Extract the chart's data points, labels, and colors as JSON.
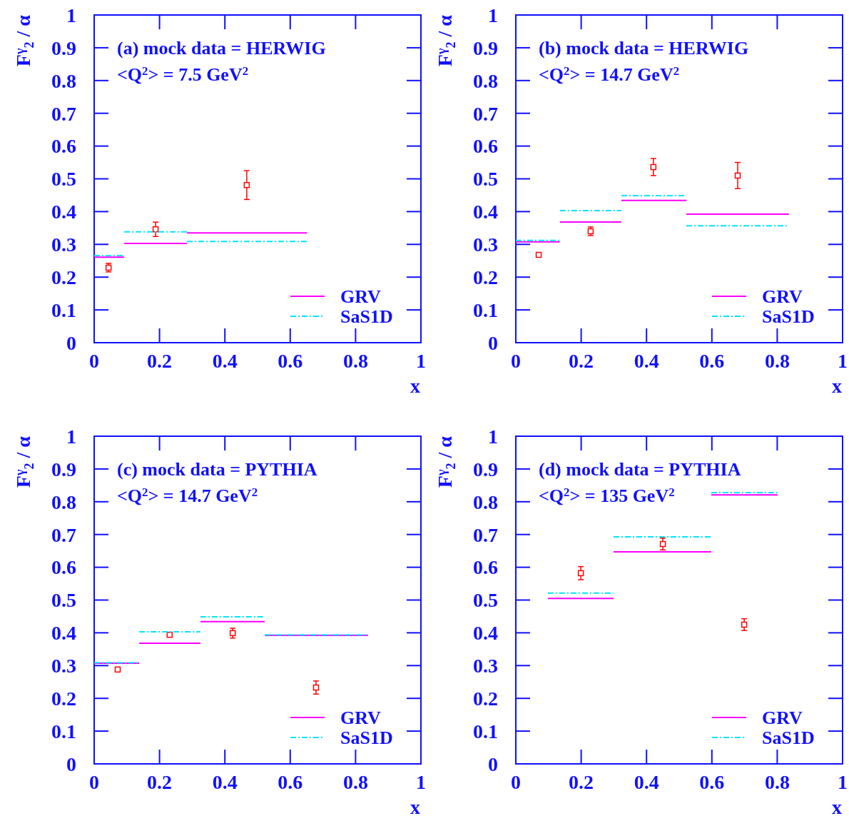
{
  "chart_data": [
    {
      "type": "scatter",
      "xlabel": "x",
      "ylabel": "F$^{γ}$$_{2}$ / α",
      "xlim": [
        0,
        1
      ],
      "ylim": [
        0,
        1
      ],
      "xticks": [
        0,
        0.2,
        0.4,
        0.6,
        0.8,
        1
      ],
      "yticks": [
        0,
        0.1,
        0.2,
        0.3,
        0.4,
        0.5,
        0.6,
        0.7,
        0.8,
        0.9,
        1
      ],
      "legend": "bottom right",
      "annotations": [
        "(a) mock data = HERWIG",
        "<Q$^{2}$> = 7.5 GeV$^{2}$"
      ],
      "series": [
        {
          "type": "scatter",
          "marker": "square",
          "color": "#ff0000",
          "x": [
            0.044,
            0.188,
            0.467
          ],
          "values": [
            0.229,
            0.346,
            0.481
          ],
          "errors": [
            0.013,
            0.022,
            0.044
          ]
        },
        {
          "type": "line",
          "name": "GRV",
          "color": "#ff00ff",
          "line_style": "solid",
          "x": [
            0,
            0.092,
            null,
            0.092,
            0.284,
            null,
            0.284,
            0.651
          ],
          "values": [
            0.261,
            0.261,
            null,
            0.303,
            0.303,
            null,
            0.335,
            0.335
          ]
        },
        {
          "type": "line",
          "name": "SaS1D",
          "color": "#00e5ff",
          "line_style": "dashdot",
          "x": [
            0,
            0.092,
            null,
            0.092,
            0.284,
            null,
            0.284,
            0.651
          ],
          "values": [
            0.266,
            0.266,
            null,
            0.338,
            0.338,
            null,
            0.309,
            0.309
          ]
        }
      ]
    },
    {
      "type": "scatter",
      "xlabel": "x",
      "ylabel": "F$^{γ}$$_{2}$ / α",
      "xlim": [
        0,
        1
      ],
      "ylim": [
        0,
        1
      ],
      "xticks": [
        0,
        0.2,
        0.4,
        0.6,
        0.8,
        1
      ],
      "yticks": [
        0,
        0.1,
        0.2,
        0.3,
        0.4,
        0.5,
        0.6,
        0.7,
        0.8,
        0.9,
        1
      ],
      "legend": "bottom right",
      "annotations": [
        "(b) mock data = HERWIG",
        "<Q$^{2}$> = 14.7 GeV$^{2}$"
      ],
      "series": [
        {
          "type": "scatter",
          "marker": "square",
          "color": "#ff0000",
          "x": [
            0.07,
            0.229,
            0.421,
            0.679
          ],
          "values": [
            0.268,
            0.34,
            0.536,
            0.51
          ],
          "errors": [
            null,
            0.013,
            0.026,
            0.04
          ]
        },
        {
          "type": "line",
          "name": "GRV",
          "color": "#ff00ff",
          "line_style": "solid",
          "x": [
            0,
            0.135,
            null,
            0.135,
            0.323,
            null,
            0.323,
            0.522,
            null,
            0.522,
            0.836
          ],
          "values": [
            0.308,
            0.308,
            null,
            0.368,
            0.368,
            null,
            0.434,
            0.434,
            null,
            0.392,
            0.392
          ]
        },
        {
          "type": "line",
          "name": "SaS1D",
          "color": "#00e5ff",
          "line_style": "dashdot",
          "x": [
            0,
            0.135,
            null,
            0.135,
            0.323,
            null,
            0.323,
            0.522,
            null,
            0.522,
            0.836
          ],
          "values": [
            0.312,
            0.312,
            null,
            0.403,
            0.403,
            null,
            0.449,
            0.449,
            null,
            0.357,
            0.357
          ]
        }
      ]
    },
    {
      "type": "scatter",
      "xlabel": "x",
      "ylabel": "F$^{γ}$$_{2}$ / α",
      "xlim": [
        0,
        1
      ],
      "ylim": [
        0,
        1
      ],
      "xticks": [
        0,
        0.2,
        0.4,
        0.6,
        0.8,
        1
      ],
      "yticks": [
        0,
        0.1,
        0.2,
        0.3,
        0.4,
        0.5,
        0.6,
        0.7,
        0.8,
        0.9,
        1
      ],
      "legend": "bottom right",
      "annotations": [
        "(c) mock data = PYTHIA",
        "<Q$^{2}$> = 14.7 GeV$^{2}$"
      ],
      "series": [
        {
          "type": "scatter",
          "marker": "square",
          "color": "#ff0000",
          "x": [
            0.072,
            0.231,
            0.424,
            0.679
          ],
          "values": [
            0.288,
            0.394,
            0.399,
            0.233
          ],
          "errors": [
            null,
            null,
            0.015,
            0.02
          ]
        },
        {
          "type": "line",
          "name": "GRV",
          "color": "#ff00ff",
          "line_style": "solid",
          "x": [
            0,
            0.138,
            null,
            0.138,
            0.325,
            null,
            0.325,
            0.522,
            null,
            0.522,
            0.838
          ],
          "values": [
            0.307,
            0.307,
            null,
            0.368,
            0.368,
            null,
            0.434,
            0.434,
            null,
            0.392,
            0.392
          ]
        },
        {
          "type": "line",
          "name": "SaS1D",
          "color": "#00e5ff",
          "line_style": "dashdot",
          "x": [
            0,
            0.138,
            null,
            0.138,
            0.325,
            null,
            0.325,
            0.522,
            null,
            0.522,
            0.838
          ],
          "values": [
            0.309,
            0.309,
            null,
            0.403,
            0.403,
            null,
            0.449,
            0.449,
            null,
            0.394,
            0.394
          ]
        }
      ]
    },
    {
      "type": "scatter",
      "xlabel": "x",
      "ylabel": "F$^{γ}$$_{2}$ / α",
      "xlim": [
        0,
        1
      ],
      "ylim": [
        0,
        1
      ],
      "xticks": [
        0,
        0.2,
        0.4,
        0.6,
        0.8,
        1
      ],
      "yticks": [
        0,
        0.1,
        0.2,
        0.3,
        0.4,
        0.5,
        0.6,
        0.7,
        0.8,
        0.9,
        1
      ],
      "legend": "bottom right",
      "annotations": [
        "(d) mock data = PYTHIA",
        "<Q$^{2}$> = 135 GeV$^{2}$"
      ],
      "series": [
        {
          "type": "scatter",
          "marker": "square",
          "color": "#ff0000",
          "x": [
            0.199,
            0.45,
            0.699
          ],
          "values": [
            0.582,
            0.671,
            0.425
          ],
          "errors": [
            0.02,
            0.018,
            0.018
          ]
        },
        {
          "type": "line",
          "name": "GRV",
          "color": "#ff00ff",
          "line_style": "solid",
          "x": [
            0.098,
            0.299,
            null,
            0.299,
            0.598,
            null,
            0.598,
            0.801
          ],
          "values": [
            0.505,
            0.505,
            null,
            0.647,
            0.647,
            null,
            0.821,
            0.821
          ]
        },
        {
          "type": "line",
          "name": "SaS1D",
          "color": "#00e5ff",
          "line_style": "dashdot",
          "x": [
            0.098,
            0.299,
            null,
            0.299,
            0.598,
            null,
            0.598,
            0.801
          ],
          "values": [
            0.521,
            0.521,
            null,
            0.693,
            0.693,
            null,
            0.828,
            0.828
          ]
        }
      ]
    }
  ]
}
